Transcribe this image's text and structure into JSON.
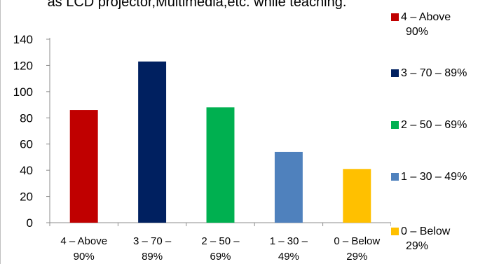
{
  "chart_data": {
    "type": "bar",
    "title": "as LCD projector,Multimedia,etc. while teaching.",
    "categories": [
      "4 – Above 90%",
      "3 – 70 – 89%",
      "2 – 50 – 69%",
      "1 – 30 – 49%",
      "0 – Below 29%"
    ],
    "category_lines": [
      [
        "4 – Above",
        "90%"
      ],
      [
        "3 – 70 –",
        "89%"
      ],
      [
        "2 – 50 –",
        "69%"
      ],
      [
        "1 – 30 –",
        "49%"
      ],
      [
        "0 – Below",
        "29%"
      ]
    ],
    "values": [
      86,
      123,
      88,
      54,
      41
    ],
    "colors": [
      "#c00000",
      "#002060",
      "#00b050",
      "#4f81bd",
      "#ffc000"
    ],
    "ylim": [
      0,
      140
    ],
    "yticks": [
      "0",
      "20",
      "40",
      "60",
      "80",
      "100",
      "120",
      "140"
    ],
    "xlabel": "",
    "ylabel": "",
    "grid": false,
    "legend": {
      "position": "right",
      "entries": [
        {
          "lines": [
            "4 – Above",
            "90%"
          ],
          "color": "#c00000"
        },
        {
          "lines": [
            "3 – 70 – 89%"
          ],
          "color": "#002060"
        },
        {
          "lines": [
            "2 – 50 – 69%"
          ],
          "color": "#00b050"
        },
        {
          "lines": [
            "1 – 30 – 49%"
          ],
          "color": "#4f81bd"
        },
        {
          "lines": [
            "0 – Below",
            "29%"
          ],
          "color": "#ffc000"
        }
      ]
    }
  }
}
